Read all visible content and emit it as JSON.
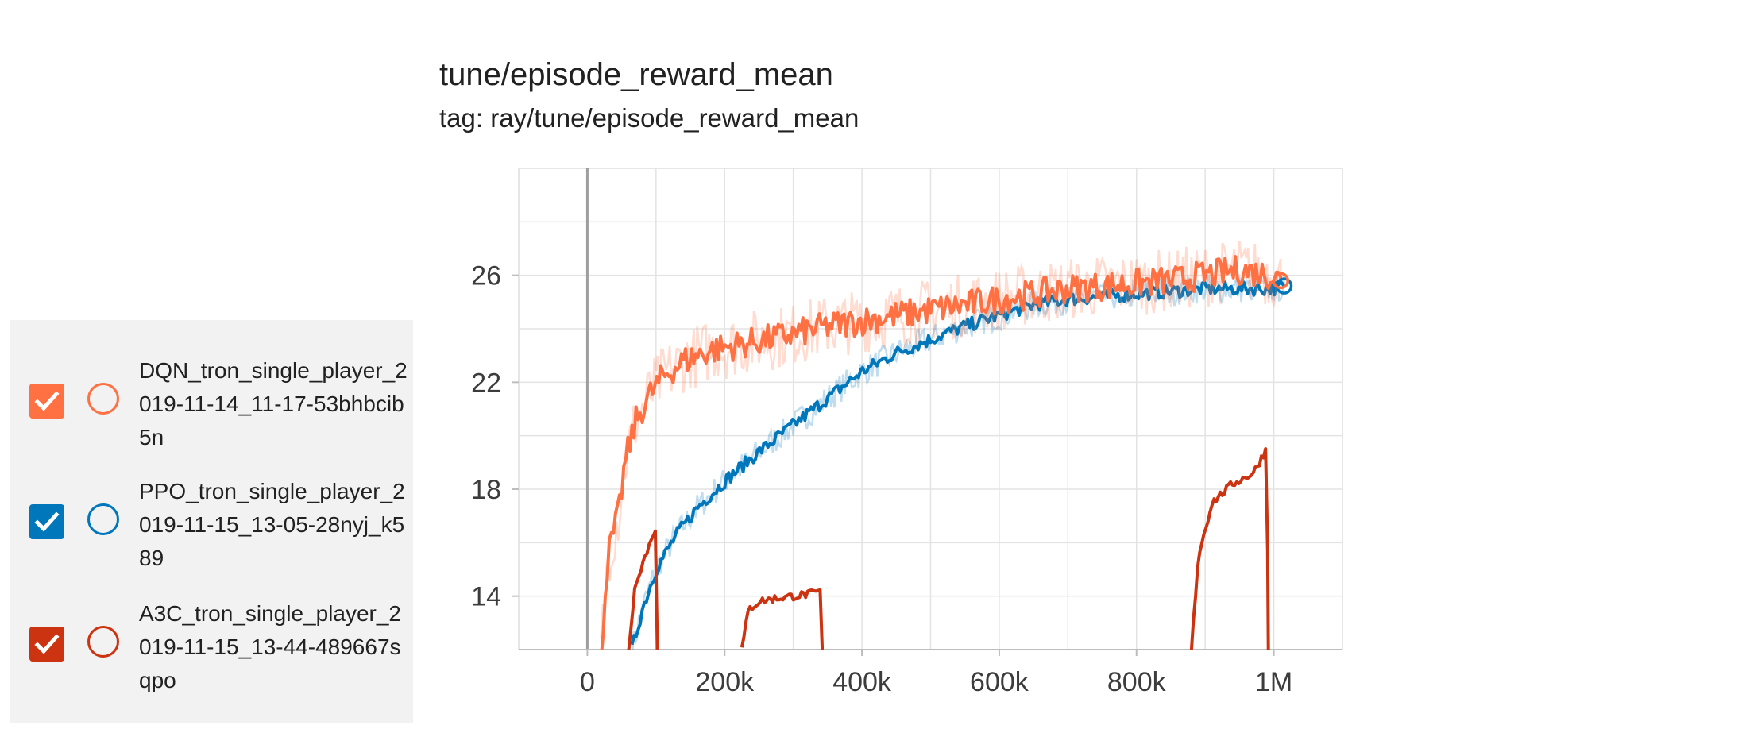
{
  "chart_data": {
    "type": "line",
    "title": "tune/episode_reward_mean",
    "subtitle": "tag: ray/tune/episode_reward_mean",
    "xlabel": "",
    "ylabel": "",
    "xlim": [
      -100000,
      1100000
    ],
    "ylim": [
      12,
      30
    ],
    "x_ticks": [
      0,
      200000,
      400000,
      600000,
      800000,
      1000000
    ],
    "x_tick_labels": [
      "0",
      "200k",
      "400k",
      "600k",
      "800k",
      "1M"
    ],
    "y_ticks": [
      14,
      18,
      22,
      26
    ],
    "y_tick_labels": [
      "14",
      "18",
      "22",
      "26"
    ],
    "grid": true,
    "legend_position": "left",
    "series": [
      {
        "name": "DQN_tron_single_player_2019-11-14_11-17-53bhbcib5n",
        "color": "#ff7043",
        "checked": true,
        "points": [
          [
            20000,
            12
          ],
          [
            30000,
            15.5
          ],
          [
            45000,
            17
          ],
          [
            55000,
            19
          ],
          [
            70000,
            20.5
          ],
          [
            90000,
            21.5
          ],
          [
            110000,
            22.2
          ],
          [
            140000,
            22.8
          ],
          [
            180000,
            23.2
          ],
          [
            220000,
            23.4
          ],
          [
            260000,
            23.6
          ],
          [
            300000,
            23.8
          ],
          [
            350000,
            24.1
          ],
          [
            400000,
            24.3
          ],
          [
            450000,
            24.5
          ],
          [
            500000,
            24.7
          ],
          [
            550000,
            24.9
          ],
          [
            600000,
            25.1
          ],
          [
            650000,
            25.3
          ],
          [
            700000,
            25.5
          ],
          [
            750000,
            25.6
          ],
          [
            800000,
            25.7
          ],
          [
            850000,
            25.8
          ],
          [
            900000,
            26.0
          ],
          [
            950000,
            26.2
          ],
          [
            1000000,
            26.0
          ],
          [
            1010000,
            25.8
          ]
        ]
      },
      {
        "name": "PPO_tron_single_player_2019-11-15_13-05-28nyj_k589",
        "color": "#0077bb",
        "checked": true,
        "points": [
          [
            65000,
            12
          ],
          [
            80000,
            13.5
          ],
          [
            100000,
            15.0
          ],
          [
            130000,
            16.3
          ],
          [
            160000,
            17.3
          ],
          [
            200000,
            18.3
          ],
          [
            250000,
            19.4
          ],
          [
            300000,
            20.4
          ],
          [
            350000,
            21.4
          ],
          [
            400000,
            22.4
          ],
          [
            450000,
            23.1
          ],
          [
            500000,
            23.6
          ],
          [
            550000,
            24.1
          ],
          [
            600000,
            24.5
          ],
          [
            650000,
            24.9
          ],
          [
            700000,
            25.1
          ],
          [
            750000,
            25.2
          ],
          [
            800000,
            25.3
          ],
          [
            850000,
            25.4
          ],
          [
            900000,
            25.5
          ],
          [
            950000,
            25.5
          ],
          [
            1000000,
            25.5
          ],
          [
            1015000,
            25.6
          ]
        ]
      },
      {
        "name": "A3C_tron_single_player_2019-11-15_13-44-489667sqpo",
        "color": "#cc3311",
        "checked": true,
        "segments": [
          [
            [
              60000,
              12
            ],
            [
              70000,
              14.5
            ],
            [
              80000,
              15.2
            ],
            [
              90000,
              15.9
            ],
            [
              98000,
              16.5
            ],
            [
              100000,
              16.6
            ],
            [
              102000,
              12
            ]
          ],
          [
            [
              225000,
              12
            ],
            [
              235000,
              13.5
            ],
            [
              250000,
              13.8
            ],
            [
              270000,
              13.9
            ],
            [
              300000,
              14.0
            ],
            [
              330000,
              14.1
            ],
            [
              340000,
              14.2
            ],
            [
              342000,
              12
            ]
          ],
          [
            [
              880000,
              12
            ],
            [
              890000,
              15.5
            ],
            [
              910000,
              17.5
            ],
            [
              940000,
              18.2
            ],
            [
              970000,
              18.6
            ],
            [
              985000,
              19.3
            ],
            [
              990000,
              19.6
            ],
            [
              992000,
              12
            ]
          ]
        ]
      }
    ]
  }
}
